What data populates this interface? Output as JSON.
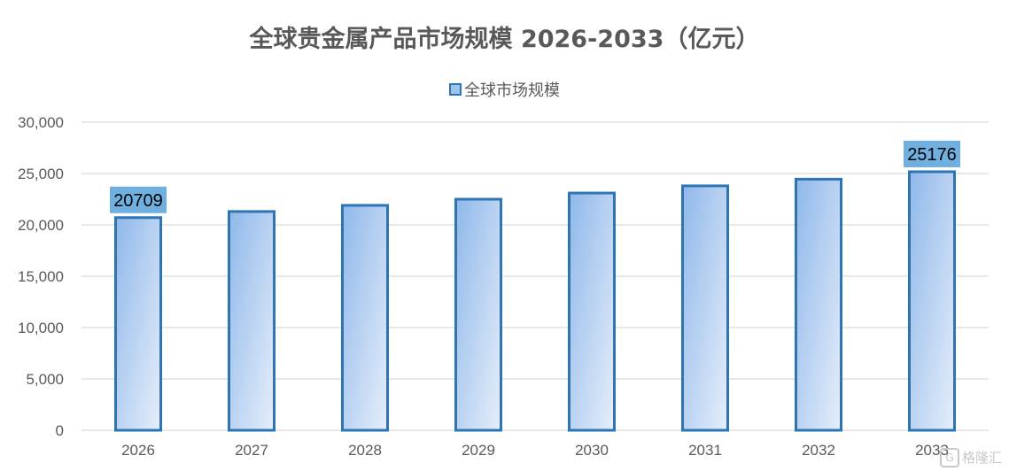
{
  "chart_data": {
    "type": "bar",
    "title": "全球贵金属产品市场规模 2026-2033（亿元）",
    "categories": [
      "2026",
      "2027",
      "2028",
      "2029",
      "2030",
      "2031",
      "2032",
      "2033"
    ],
    "series": [
      {
        "name": "全球市场规模",
        "values": [
          20709,
          21300,
          21900,
          22500,
          23100,
          23800,
          24450,
          25176
        ]
      }
    ],
    "data_labels": [
      {
        "category": "2026",
        "text": "20709"
      },
      {
        "category": "2033",
        "text": "25176"
      }
    ],
    "ylim": [
      0,
      30000
    ],
    "yticks": [
      "0",
      "5,000",
      "10,000",
      "15,000",
      "20,000",
      "25,000",
      "30,000"
    ],
    "ytick_values": [
      0,
      5000,
      10000,
      15000,
      20000,
      25000,
      30000
    ],
    "grid": true,
    "legend_position": "top",
    "colors": {
      "bar_border": "#2e75b6",
      "bar_fill_top": "#8fb8ea",
      "bar_fill_bottom": "#e6eefa",
      "label_bg": "#6fb0e0",
      "grid": "#d9d9d9",
      "text": "#595959"
    }
  },
  "watermark": {
    "icon": "G",
    "text": "格隆汇"
  }
}
